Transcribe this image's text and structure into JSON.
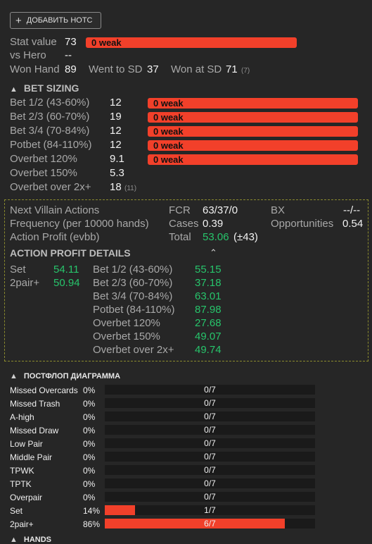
{
  "add_note_label": "ДОБАВИТЬ НОТС",
  "stat": {
    "label": "Stat value",
    "value": "73",
    "bar": "0 weak",
    "vs_hero_label": "vs Hero",
    "vs_hero_value": "--",
    "won_hand_label": "Won Hand",
    "won_hand_value": "89",
    "went_sd_label": "Went to SD",
    "went_sd_value": "37",
    "won_sd_label": "Won at SD",
    "won_sd_value": "71",
    "won_sd_count": "(7)"
  },
  "bet_sizing": {
    "title": "BET SIZING",
    "rows": [
      {
        "label": "Bet 1/2 (43-60%)",
        "value": "12",
        "bar": "0 weak",
        "count": ""
      },
      {
        "label": "Bet 2/3 (60-70%)",
        "value": "19",
        "bar": "0 weak",
        "count": ""
      },
      {
        "label": "Bet 3/4 (70-84%)",
        "value": "12",
        "bar": "0 weak",
        "count": ""
      },
      {
        "label": "Potbet (84-110%)",
        "value": "12",
        "bar": "0 weak",
        "count": ""
      },
      {
        "label": "Overbet 120%",
        "value": "9.1",
        "bar": "0 weak",
        "count": ""
      },
      {
        "label": "Overbet 150%",
        "value": "5.3",
        "bar": "",
        "count": ""
      },
      {
        "label": "Overbet over 2x+",
        "value": "18",
        "bar": "",
        "count": "(11)"
      }
    ]
  },
  "villain": {
    "next_actions": "Next Villain Actions",
    "frequency": "Frequency (per 10000 hands)",
    "action_profit": "Action Profit (evbb)",
    "fcr_label": "FCR",
    "fcr_value": "63/37/0",
    "cases_label": "Cases",
    "cases_value": "0.39",
    "total_label": "Total",
    "total_value": "53.06",
    "total_dev": "(±43)",
    "bx_label": "BX",
    "bx_value": "--/--",
    "opp_label": "Opportunities",
    "opp_value": "0.54"
  },
  "action_profit_details": {
    "title": "ACTION PROFIT DETAILS",
    "left": [
      {
        "label": "Set",
        "value": "54.11"
      },
      {
        "label": "2pair+",
        "value": "50.94"
      }
    ],
    "right": [
      {
        "label": "Bet 1/2 (43-60%)",
        "value": "55.15"
      },
      {
        "label": "Bet 2/3 (60-70%)",
        "value": "37.18"
      },
      {
        "label": "Bet 3/4 (70-84%)",
        "value": "63.01"
      },
      {
        "label": "Potbet (84-110%)",
        "value": "87.98"
      },
      {
        "label": "Overbet 120%",
        "value": "27.68"
      },
      {
        "label": "Overbet 150%",
        "value": "49.07"
      },
      {
        "label": "Overbet over 2x+",
        "value": "49.74"
      }
    ]
  },
  "postflop": {
    "title": "ПОСТФЛОП ДИАГРАММА",
    "rows": [
      {
        "label": "Missed Overcards",
        "pct": "0%",
        "value": "0/7",
        "fraction": 0
      },
      {
        "label": "Missed Trash",
        "pct": "0%",
        "value": "0/7",
        "fraction": 0
      },
      {
        "label": "A-high",
        "pct": "0%",
        "value": "0/7",
        "fraction": 0
      },
      {
        "label": "Missed Draw",
        "pct": "0%",
        "value": "0/7",
        "fraction": 0
      },
      {
        "label": "Low Pair",
        "pct": "0%",
        "value": "0/7",
        "fraction": 0
      },
      {
        "label": "Middle Pair",
        "pct": "0%",
        "value": "0/7",
        "fraction": 0
      },
      {
        "label": "TPWK",
        "pct": "0%",
        "value": "0/7",
        "fraction": 0
      },
      {
        "label": "TPTK",
        "pct": "0%",
        "value": "0/7",
        "fraction": 0
      },
      {
        "label": "Overpair",
        "pct": "0%",
        "value": "0/7",
        "fraction": 0
      },
      {
        "label": "Set",
        "pct": "14%",
        "value": "1/7",
        "fraction": 0.143
      },
      {
        "label": "2pair+",
        "pct": "86%",
        "value": "6/7",
        "fraction": 0.857
      }
    ]
  },
  "hands": {
    "title": "HANDS"
  }
}
